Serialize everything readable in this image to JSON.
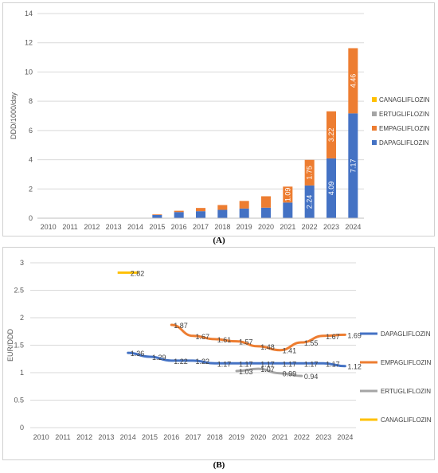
{
  "captions": {
    "a": "(A)",
    "b": "(B)"
  },
  "chart_data": [
    {
      "type": "bar",
      "stacked": true,
      "ylabel": "DDD/1000/day",
      "ylim": [
        0,
        14
      ],
      "yticks": [
        0,
        2,
        4,
        6,
        8,
        10,
        12,
        14
      ],
      "categories": [
        "2010",
        "2011",
        "2012",
        "2013",
        "2014",
        "2015",
        "2016",
        "2017",
        "2018",
        "2019",
        "2020",
        "2021",
        "2022",
        "2023",
        "2024"
      ],
      "series": [
        {
          "name": "DAPAGLIFLOZIN",
          "color": "#4472C4",
          "values": [
            0,
            0,
            0,
            0,
            0.01,
            0.22,
            0.42,
            0.48,
            0.57,
            0.66,
            0.72,
            1.07,
            2.24,
            4.09,
            7.17
          ],
          "labels": [
            "",
            "",
            "",
            "",
            "",
            "",
            "",
            "",
            "",
            "",
            "",
            "",
            "2.24",
            "4.09",
            "7.17"
          ]
        },
        {
          "name": "EMPAGLIFLOZIN",
          "color": "#ED7D31",
          "values": [
            0,
            0,
            0,
            0,
            0,
            0.04,
            0.09,
            0.22,
            0.33,
            0.52,
            0.78,
            1.09,
            1.75,
            3.22,
            4.46
          ],
          "labels": [
            "",
            "",
            "",
            "",
            "",
            "",
            "",
            "",
            "",
            "",
            "",
            "1.09",
            "1.75",
            "3.22",
            "4.46"
          ]
        },
        {
          "name": "ERTUGLIFLOZIN",
          "color": "#A5A5A5",
          "values": [
            0,
            0,
            0,
            0,
            0,
            0,
            0,
            0,
            0,
            0,
            0,
            0,
            0,
            0,
            0
          ],
          "labels": []
        },
        {
          "name": "CANAGLIFLOZIN",
          "color": "#FFC000",
          "values": [
            0,
            0,
            0,
            0,
            0,
            0,
            0,
            0,
            0,
            0,
            0,
            0,
            0,
            0,
            0
          ],
          "labels": []
        }
      ],
      "legend_order": [
        "CANAGLIFLOZIN",
        "ERTUGLIFLOZIN",
        "EMPAGLIFLOZIN",
        "DAPAGLIFLOZIN"
      ],
      "legend": "right",
      "grid": true
    },
    {
      "type": "line",
      "ylabel": "EUR/DDD",
      "ylim": [
        0,
        3
      ],
      "yticks": [
        "0",
        "0.5",
        "1",
        "1.5",
        "2",
        "2.5",
        "3"
      ],
      "categories": [
        "2010",
        "2011",
        "2012",
        "2013",
        "2014",
        "2015",
        "2016",
        "2017",
        "2018",
        "2019",
        "2020",
        "2021",
        "2022",
        "2023",
        "2024"
      ],
      "series": [
        {
          "name": "DAPAGLIFLOZIN",
          "color": "#4472C4",
          "values": [
            null,
            null,
            null,
            null,
            1.36,
            1.29,
            1.22,
            1.22,
            1.17,
            1.17,
            1.17,
            1.17,
            1.17,
            1.17,
            1.12
          ],
          "labels": [
            "",
            "",
            "",
            "",
            "1.36",
            "1.29",
            "1.22",
            "1.22",
            "1.17",
            "1.17",
            "1.17",
            "1.17",
            "1.17",
            "1.17",
            "1.12"
          ]
        },
        {
          "name": "EMPAGLIFLOZIN",
          "color": "#ED7D31",
          "values": [
            null,
            null,
            null,
            null,
            null,
            null,
            1.87,
            1.67,
            1.61,
            1.57,
            1.48,
            1.41,
            1.55,
            1.67,
            1.69
          ],
          "labels": [
            "",
            "",
            "",
            "",
            "",
            "",
            "1.87",
            "1.67",
            "1.61",
            "1.57",
            "1.48",
            "1.41",
            "1.55",
            "1.67",
            "1.69"
          ]
        },
        {
          "name": "ERTUGLIFLOZIN",
          "color": "#A5A5A5",
          "values": [
            null,
            null,
            null,
            null,
            null,
            null,
            null,
            null,
            null,
            1.03,
            1.07,
            0.99,
            0.94,
            null,
            null
          ],
          "labels": [
            "",
            "",
            "",
            "",
            "",
            "",
            "",
            "",
            "",
            "1.03",
            "1.07",
            "0.99",
            "0.94",
            "",
            ""
          ]
        },
        {
          "name": "CANAGLIFLOZIN",
          "color": "#FFC000",
          "values": [
            null,
            null,
            null,
            null,
            2.82,
            null,
            null,
            null,
            null,
            null,
            null,
            null,
            null,
            null,
            null
          ],
          "labels": [
            "",
            "",
            "",
            "",
            "2.82",
            "",
            "",
            "",
            "",
            "",
            "",
            "",
            "",
            "",
            ""
          ]
        }
      ],
      "legend_order": [
        "DAPAGLIFLOZIN",
        "EMPAGLIFLOZIN",
        "ERTUGLIFLOZIN",
        "CANAGLIFLOZIN"
      ],
      "legend": "right",
      "grid": true
    }
  ]
}
